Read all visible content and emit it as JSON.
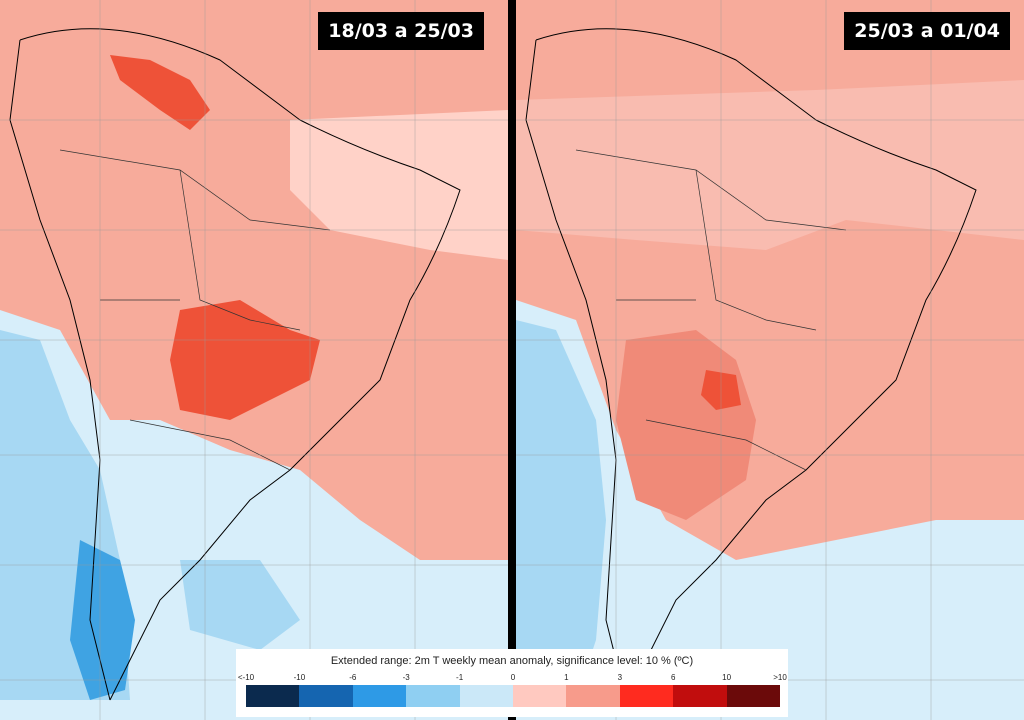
{
  "panels": [
    {
      "label": "18/03 a 25/03"
    },
    {
      "label": "25/03 a 01/04"
    }
  ],
  "legend": {
    "title": "Extended range: 2m T weekly mean anomaly, significance level: 10 % (ºC)",
    "ticks": [
      "<-10",
      "-10",
      "-6",
      "-3",
      "-1",
      "0",
      "1",
      "3",
      "6",
      "10",
      ">10"
    ],
    "colors": [
      "#0b2a4e",
      "#1565b0",
      "#2e9ae6",
      "#8fcff2",
      "#cbe8f8",
      "#ffc9c0",
      "#f79b8b",
      "#ff2b1f",
      "#c10d0d",
      "#6b0a0a"
    ]
  },
  "colors": {
    "warm_light": "#f7ab9b",
    "warm_medium": "#f08a78",
    "warm_strong": "#ee5238",
    "neutral_warm": "#ffd2c8",
    "cold_light": "#d7eefa",
    "cold_medium": "#a7d8f3",
    "cold_strong": "#3fa3e3"
  }
}
